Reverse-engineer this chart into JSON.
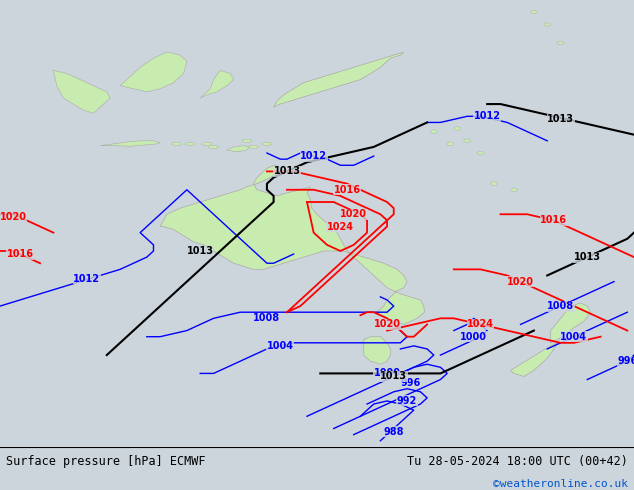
{
  "title_left": "Surface pressure [hPa] ECMWF",
  "title_right": "Tu 28-05-2024 18:00 UTC (00+42)",
  "credit": "©weatheronline.co.uk",
  "bg_color": "#cdd5dc",
  "land_color": "#c8ecb0",
  "land_edge": "#aaaaaa",
  "fig_width": 6.34,
  "fig_height": 4.9,
  "dpi": 100,
  "text_color": "#000000",
  "credit_color": "#0055cc",
  "footer_bg": "#ffffff",
  "lon_min": 90,
  "lon_max": 185,
  "lat_min": -58,
  "lat_max": 15
}
